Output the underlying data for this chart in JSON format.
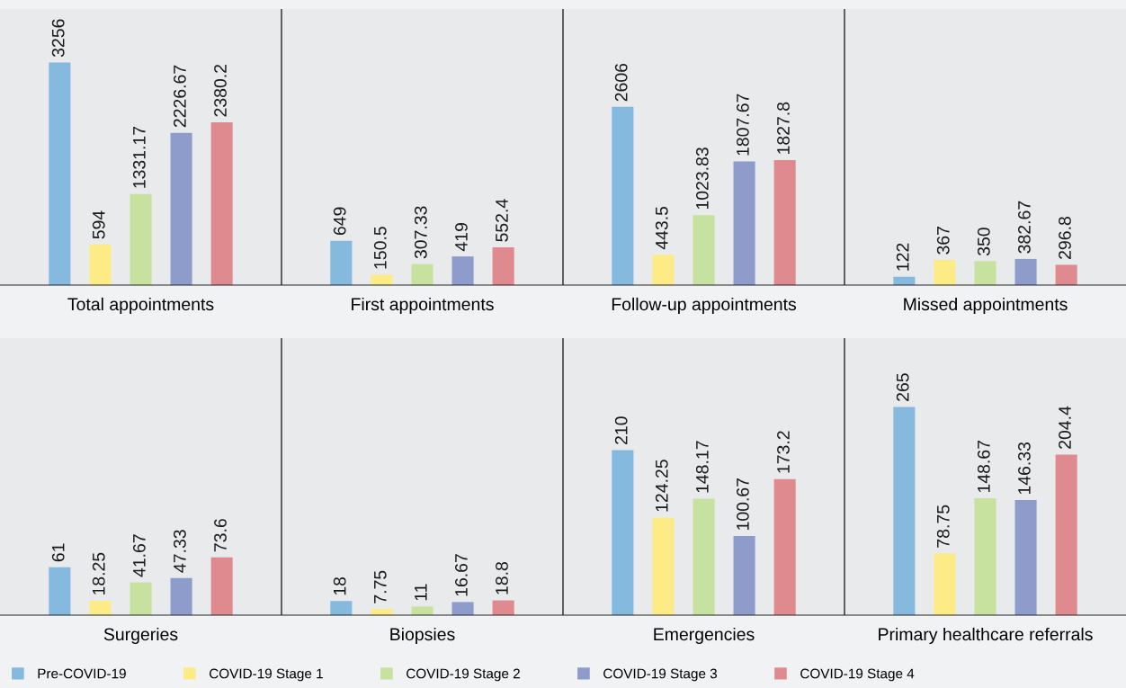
{
  "chart_data": [
    {
      "type": "bar",
      "categories": [
        "Total appointments",
        "First appointments",
        "Follow-up appointments",
        "Missed appointments"
      ],
      "data_labels": true,
      "tick_labels": "x",
      "grid": "x",
      "legend": "bottom",
      "series": [
        {
          "name": "Pre-COVID-19",
          "color": "#85b9dd",
          "values": [
            3256,
            649,
            2606,
            122
          ]
        },
        {
          "name": "COVID-19 Stage 1",
          "color": "#fdeb85",
          "values": [
            594,
            150.5,
            443.5,
            367
          ]
        },
        {
          "name": "COVID-19 Stage 2",
          "color": "#c6e29e",
          "values": [
            1331.17,
            307.33,
            1023.83,
            350
          ]
        },
        {
          "name": "COVID-19 Stage 3",
          "color": "#8e9ccb",
          "values": [
            2226.67,
            419,
            1807.67,
            382.67
          ]
        },
        {
          "name": "COVID-19 Stage 4",
          "color": "#df8a8f",
          "values": [
            2380.2,
            552.4,
            1827.8,
            296.8
          ]
        }
      ]
    },
    {
      "type": "bar",
      "categories": [
        "Surgeries",
        "Biopsies",
        "Emergencies",
        "Primary healthcare referrals"
      ],
      "data_labels": true,
      "tick_labels": "x",
      "grid": "x",
      "legend": "bottom",
      "series": [
        {
          "name": "Pre-COVID-19",
          "color": "#85b9dd",
          "values": [
            61,
            18,
            210,
            265
          ]
        },
        {
          "name": "COVID-19 Stage 1",
          "color": "#fdeb85",
          "values": [
            18.25,
            7.75,
            124.25,
            78.75
          ]
        },
        {
          "name": "COVID-19 Stage 2",
          "color": "#c6e29e",
          "values": [
            41.67,
            11,
            148.17,
            148.67
          ]
        },
        {
          "name": "COVID-19 Stage 3",
          "color": "#8e9ccb",
          "values": [
            47.33,
            16.67,
            100.67,
            146.33
          ]
        },
        {
          "name": "COVID-19 Stage 4",
          "color": "#df8a8f",
          "values": [
            73.6,
            18.8,
            173.2,
            204.4
          ]
        }
      ]
    }
  ]
}
